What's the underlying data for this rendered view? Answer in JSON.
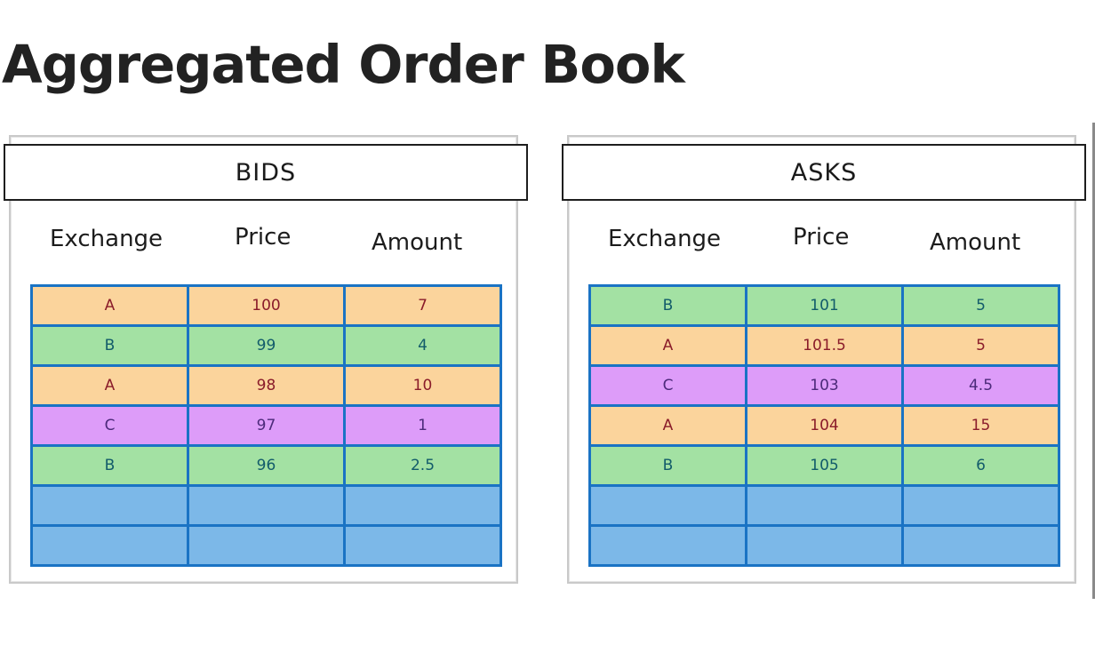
{
  "title": "Aggregated Order Book",
  "columns": [
    "Exchange",
    "Price",
    "Amount"
  ],
  "colors": {
    "exchange_A": "#fbd49c",
    "exchange_B": "#a3e1a3",
    "exchange_C": "#dd9cf9",
    "empty": "#7cb8e8",
    "grid_border": "#1a73c4"
  },
  "bids": {
    "label": "BIDS",
    "rows": [
      {
        "exchange": "A",
        "price": "100",
        "amount": "7"
      },
      {
        "exchange": "B",
        "price": "99",
        "amount": "4"
      },
      {
        "exchange": "A",
        "price": "98",
        "amount": "10"
      },
      {
        "exchange": "C",
        "price": "97",
        "amount": "1"
      },
      {
        "exchange": "B",
        "price": "96",
        "amount": "2.5"
      },
      {
        "exchange": "",
        "price": "",
        "amount": ""
      },
      {
        "exchange": "",
        "price": "",
        "amount": ""
      }
    ]
  },
  "asks": {
    "label": "ASKS",
    "rows": [
      {
        "exchange": "B",
        "price": "101",
        "amount": "5"
      },
      {
        "exchange": "A",
        "price": "101.5",
        "amount": "5"
      },
      {
        "exchange": "C",
        "price": "103",
        "amount": "4.5"
      },
      {
        "exchange": "A",
        "price": "104",
        "amount": "15"
      },
      {
        "exchange": "B",
        "price": "105",
        "amount": "6"
      },
      {
        "exchange": "",
        "price": "",
        "amount": ""
      },
      {
        "exchange": "",
        "price": "",
        "amount": ""
      }
    ]
  }
}
